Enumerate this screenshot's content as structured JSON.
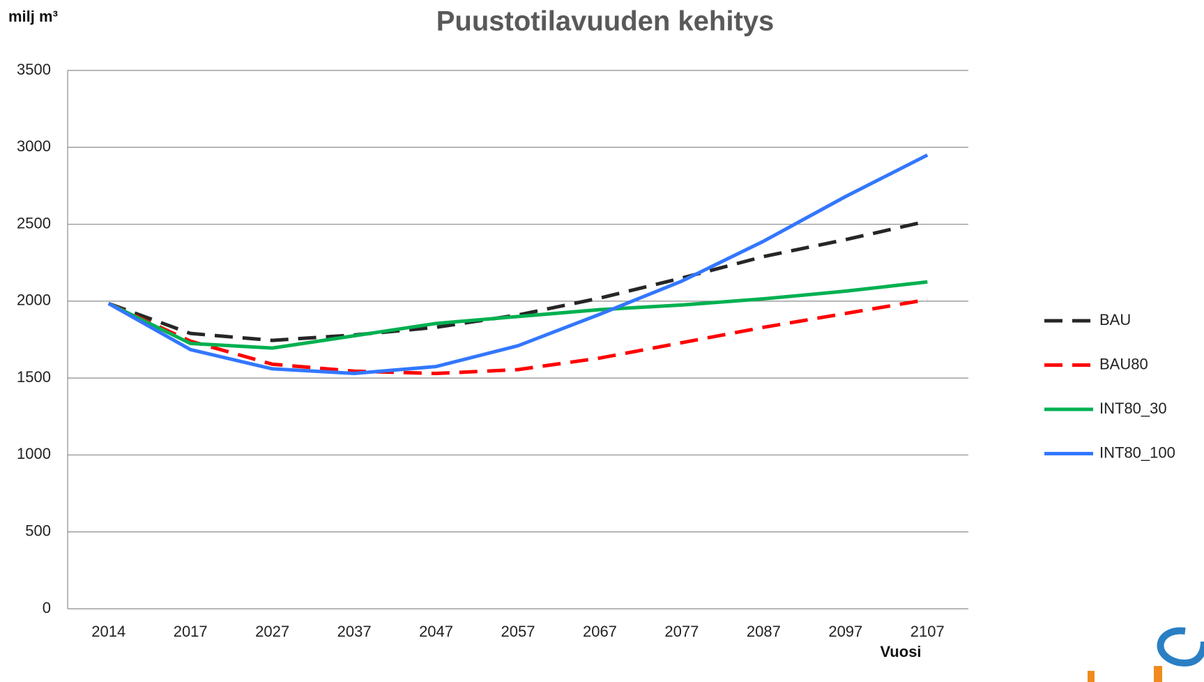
{
  "chart_data": {
    "type": "line",
    "title": "Puustotilavuuden kehitys",
    "y_label": "milj m³",
    "x_label": "Vuosi",
    "categories": [
      "2014",
      "2017",
      "2027",
      "2037",
      "2047",
      "2057",
      "2067",
      "2077",
      "2087",
      "2097",
      "2107"
    ],
    "series": [
      {
        "name": "BAU",
        "color": "#262626",
        "dashed": true,
        "values": [
          1985,
          1790,
          1745,
          1780,
          1830,
          1910,
          2020,
          2150,
          2290,
          2400,
          2520
        ]
      },
      {
        "name": "BAU80",
        "color": "#ff0000",
        "dashed": true,
        "values": [
          1985,
          1740,
          1590,
          1545,
          1530,
          1555,
          1630,
          1730,
          1830,
          1920,
          2010
        ]
      },
      {
        "name": "INT80_30",
        "color": "#00b050",
        "dashed": false,
        "values": [
          1985,
          1725,
          1695,
          1775,
          1855,
          1900,
          1945,
          1975,
          2015,
          2065,
          2125
        ]
      },
      {
        "name": "INT80_100",
        "color": "#3377ff",
        "dashed": false,
        "values": [
          1985,
          1685,
          1560,
          1530,
          1575,
          1710,
          1915,
          2130,
          2390,
          2680,
          2950
        ]
      }
    ],
    "ylim": [
      0,
      3500
    ],
    "yticks": [
      0,
      500,
      1000,
      1500,
      2000,
      2500,
      3000,
      3500
    ],
    "grid": true,
    "legend": "right"
  }
}
